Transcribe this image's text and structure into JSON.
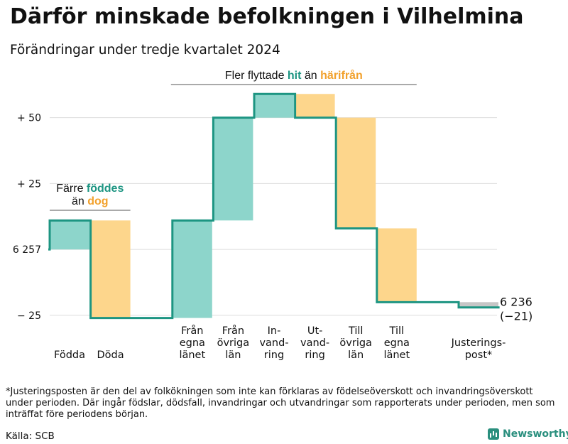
{
  "header": {
    "title": "Därför minskade befolkningen i Vilhelmina",
    "subtitle": "Förändringar under tredje kvartalet 2024"
  },
  "chart_data": {
    "type": "waterfall",
    "start_value": 6257,
    "end_value": 6236,
    "end_label": "6 236",
    "end_change_label": "(−21)",
    "ylim": [
      -28,
      65
    ],
    "y_ticks": [
      {
        "value": -25,
        "label": "− 25"
      },
      {
        "value": 0,
        "label": "6 257"
      },
      {
        "value": 25,
        "label": "+ 25"
      },
      {
        "value": 50,
        "label": "+ 50"
      }
    ],
    "steps": [
      {
        "lines": [
          "Födda"
        ],
        "value": 11,
        "kind": "in"
      },
      {
        "lines": [
          "Döda"
        ],
        "value": -37,
        "kind": "out"
      },
      {
        "lines": [],
        "value": 0,
        "kind": "gap"
      },
      {
        "lines": [
          "Från",
          "egna",
          "länet"
        ],
        "value": 37,
        "kind": "in"
      },
      {
        "lines": [
          "Från",
          "övriga",
          "län"
        ],
        "value": 39,
        "kind": "in"
      },
      {
        "lines": [
          "In-",
          "vand-",
          "ring"
        ],
        "value": 9,
        "kind": "in"
      },
      {
        "lines": [
          "Ut-",
          "vand-",
          "ring"
        ],
        "value": -9,
        "kind": "out"
      },
      {
        "lines": [
          "Till",
          "övriga",
          "län"
        ],
        "value": -42,
        "kind": "out"
      },
      {
        "lines": [
          "Till",
          "egna",
          "länet"
        ],
        "value": -28,
        "kind": "out"
      },
      {
        "lines": [],
        "value": 0,
        "kind": "gap"
      },
      {
        "lines": [
          "Justerings-",
          "post*"
        ],
        "value": -2,
        "kind": "adjust"
      }
    ],
    "annotations": {
      "births": {
        "prefix": "Färre ",
        "word1": "föddes",
        "middle": "än ",
        "word2": "dog"
      },
      "migration": {
        "prefix": "Fler flyttade ",
        "word1": "hit",
        "middle": " än ",
        "word2": "härifrån"
      }
    },
    "colors": {
      "in": "#8dd5cb",
      "out": "#fdd68c",
      "adjust": "#c6c6c6",
      "line": "#1d9582",
      "accent_in": "#1d9582",
      "accent_out": "#f2a12c",
      "grid": "#dcdcdc"
    }
  },
  "footnote": "*Justeringsposten är den del av folkökningen som inte kan förklaras av födelseöverskott och invandringsöverskott under perioden. Där ingår födslar, dödsfall, invandringar och utvandringar som rapporterats under perioden, men som inträffat före periodens början.",
  "source": "Källa: SCB",
  "brand": "Newsworthy"
}
